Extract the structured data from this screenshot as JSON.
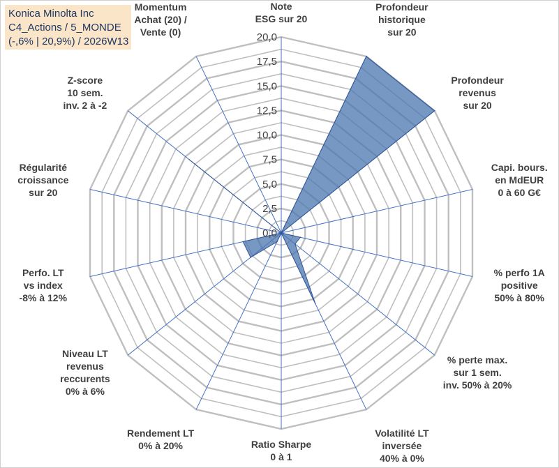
{
  "title_box": {
    "line1": "Konica Minolta Inc",
    "line2": "C4_Actions / 5_MONDE",
    "line3": "(-,6% | 20,9%) / 2026W13"
  },
  "chart_data": {
    "type": "radar",
    "rmin": 0,
    "rmax": 20,
    "tick_values": [
      0,
      2.5,
      5,
      7.5,
      10,
      12.5,
      15,
      17.5,
      20
    ],
    "tick_labels": [
      "0,0",
      "2,5",
      "5,0",
      "7,5",
      "10,0",
      "12,5",
      "15,0",
      "17,5",
      "20,0"
    ],
    "grid": true,
    "fill_color": "#4a76ad",
    "fill_opacity": 0.75,
    "grid_color": "#bfbfbf",
    "axis_line_color": "#4472c4",
    "axes": [
      {
        "lines": [
          "Note",
          "ESG sur 20"
        ]
      },
      {
        "lines": [
          "Profondeur",
          "historique",
          "sur 20"
        ]
      },
      {
        "lines": [
          "Profondeur",
          "revenus",
          "sur 20"
        ]
      },
      {
        "lines": [
          "Capi. bours.",
          "en MdEUR",
          "0 à 60 G€"
        ]
      },
      {
        "lines": [
          "% perfo 1A",
          "positive",
          "50% à 80%"
        ]
      },
      {
        "lines": [
          "% perte max.",
          "sur 1 sem.",
          "inv. 50% à 20%"
        ]
      },
      {
        "lines": [
          "Volatilité LT",
          "inversée",
          "40% à 0%"
        ]
      },
      {
        "lines": [
          "Ratio Sharpe",
          "0 à 1"
        ]
      },
      {
        "lines": [
          "Rendement LT",
          "0% à 20%"
        ]
      },
      {
        "lines": [
          "Niveau LT",
          "revenus",
          "reccurents",
          "0% à 6%"
        ]
      },
      {
        "lines": [
          "Perfo. LT",
          "vs index",
          "-8% à 12%"
        ]
      },
      {
        "lines": [
          "Régularité",
          "croissance",
          "sur 20"
        ]
      },
      {
        "lines": [
          "Z-score",
          "10 sem.",
          "inv. 2 à -2"
        ]
      },
      {
        "lines": [
          "Momentum",
          "Achat (20) /",
          "Vente (0)"
        ]
      }
    ],
    "values": [
      0,
      20,
      20,
      0,
      2,
      1.8,
      8,
      0,
      1,
      4,
      4,
      0,
      12,
      0
    ]
  }
}
